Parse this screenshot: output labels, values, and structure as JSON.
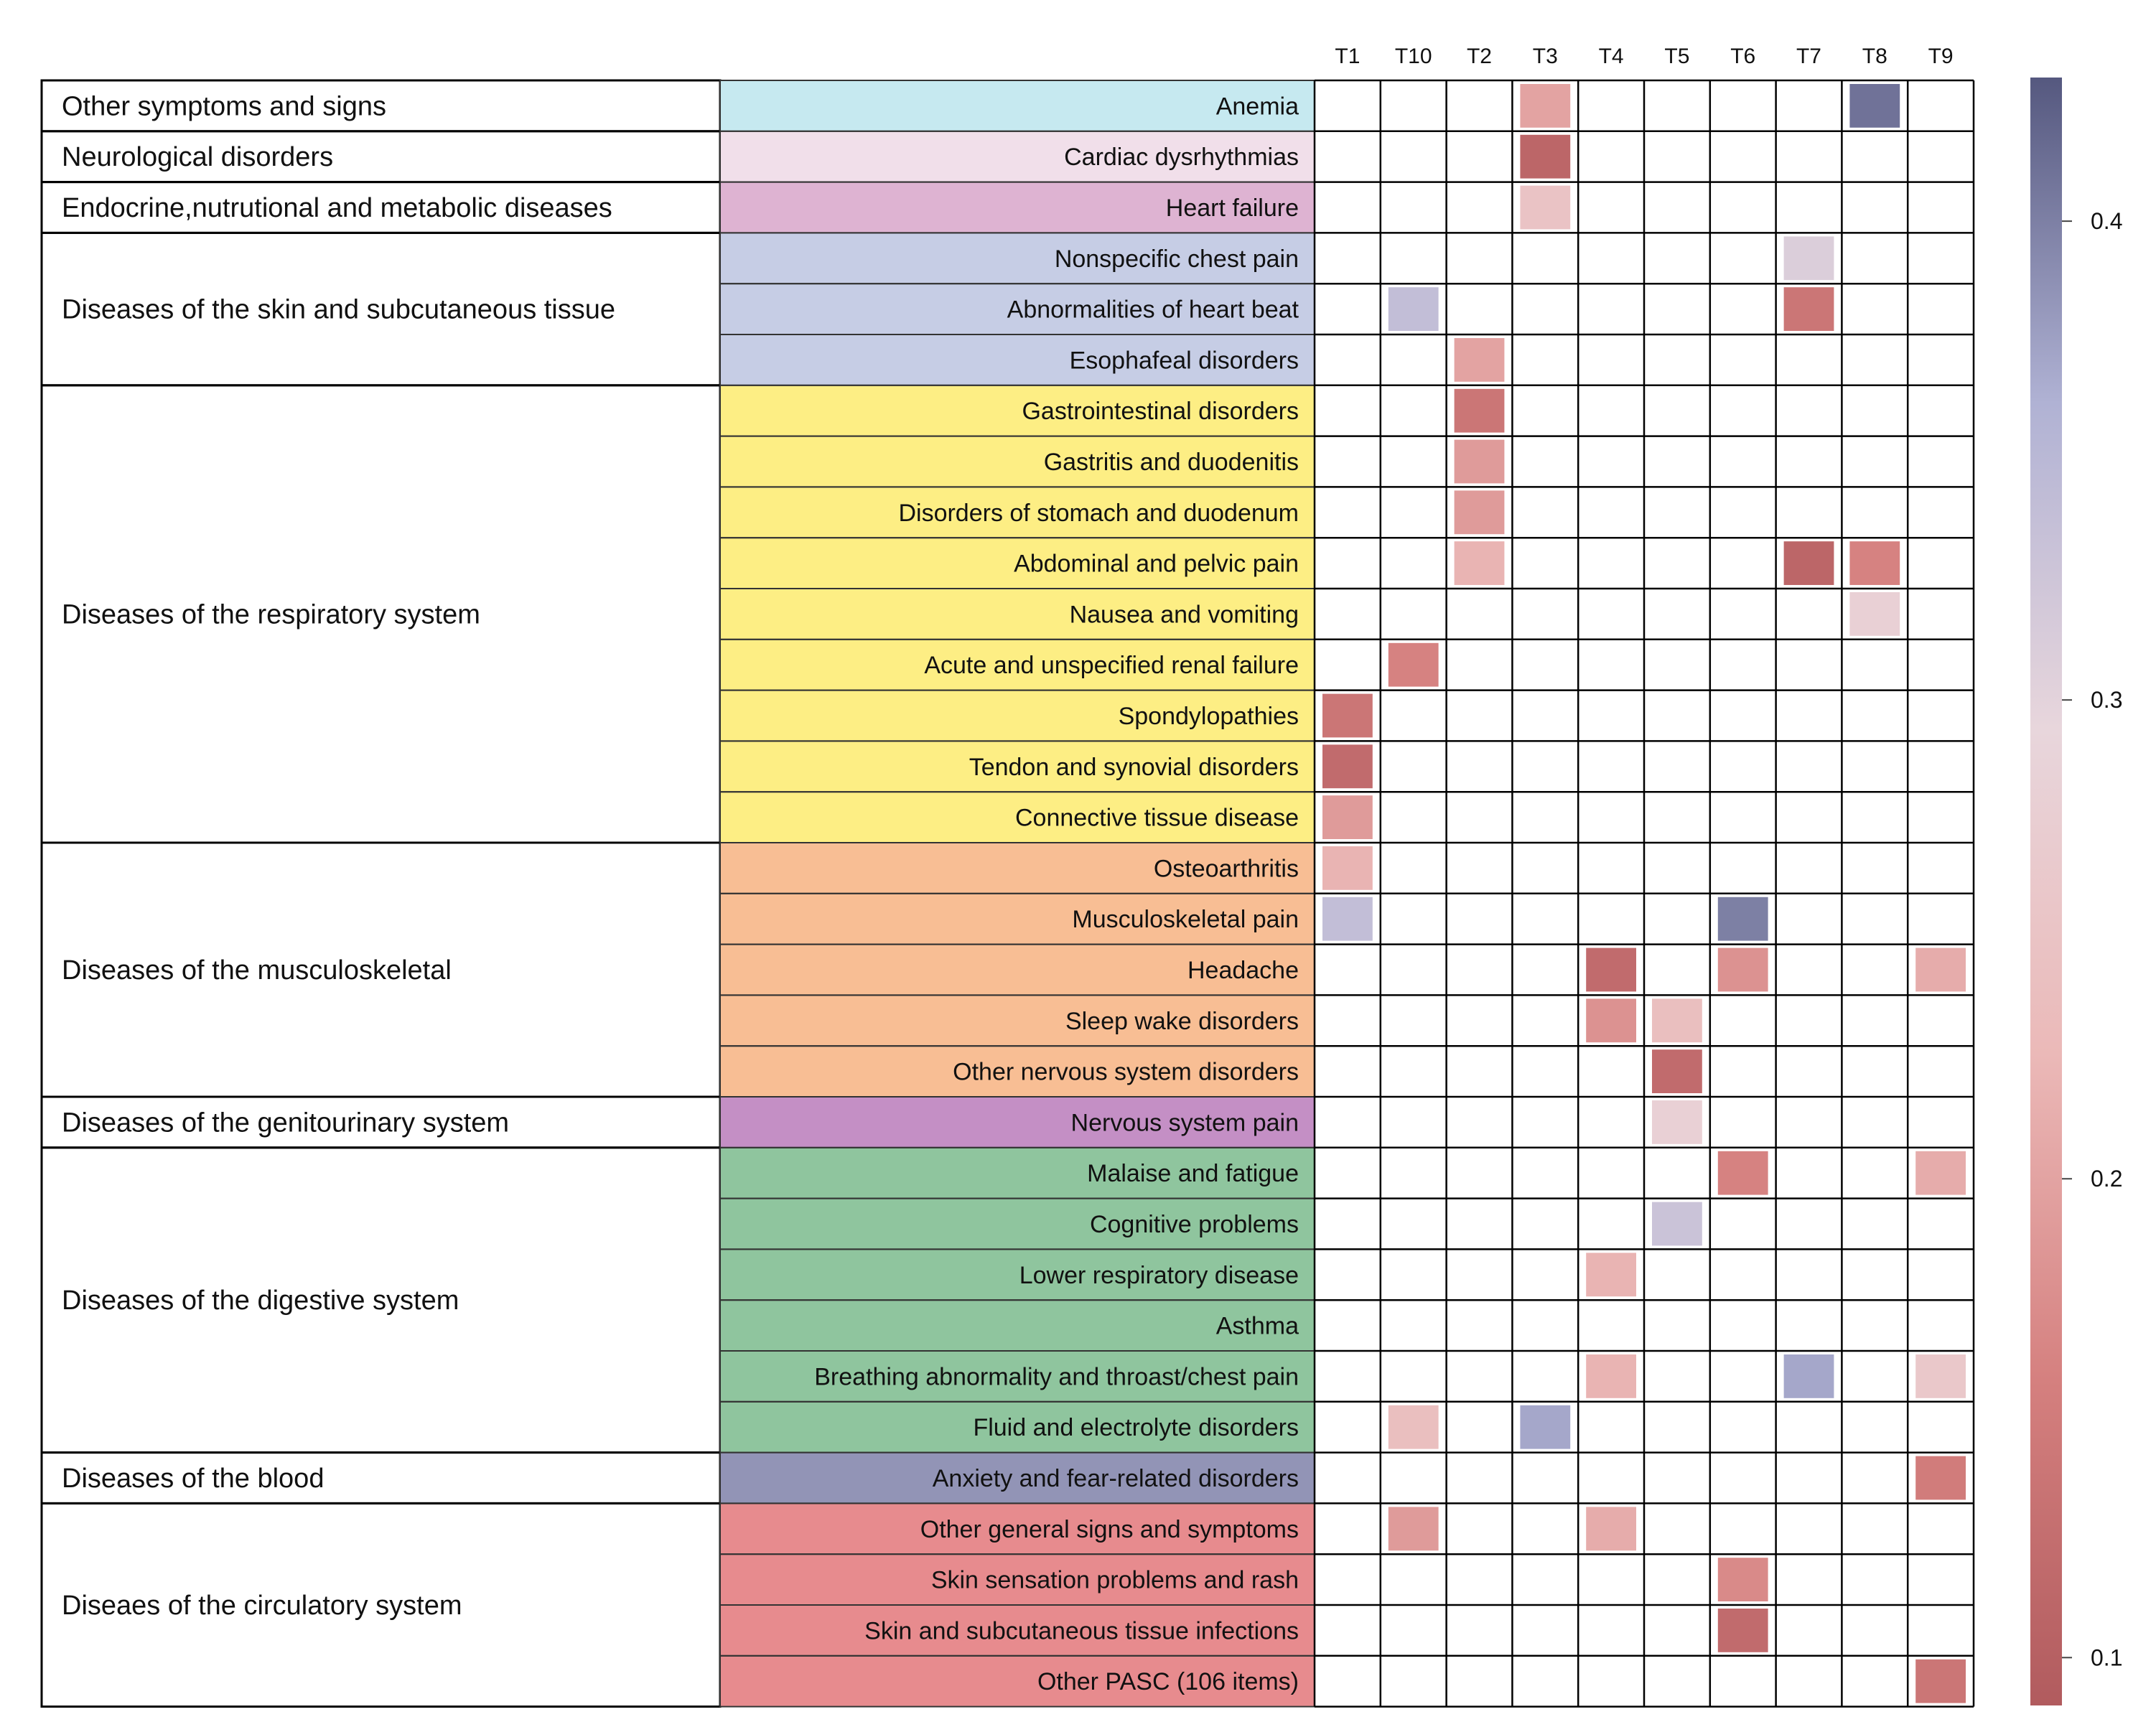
{
  "chart_data": {
    "type": "heatmap",
    "x_categories": [
      "T1",
      "T10",
      "T2",
      "T3",
      "T4",
      "T5",
      "T6",
      "T7",
      "T8",
      "T9"
    ],
    "rows": [
      "Anemia",
      "Cardiac dysrhythmias",
      "Heart failure",
      "Nonspecific chest pain",
      "Abnormalities of heart beat",
      "Esophafeal disorders",
      "Gastrointestinal disorders",
      "Gastritis and duodenitis",
      "Disorders of stomach and duodenum",
      "Abdominal and pelvic pain",
      "Nausea and vomiting",
      "Acute and unspecified renal failure",
      "Spondylopathies",
      "Tendon and synovial disorders",
      "Connective tissue disease",
      "Osteoarthritis",
      "Musculoskeletal pain",
      "Headache",
      "Sleep wake disorders",
      "Other nervous system disorders",
      "Nervous system pain",
      "Malaise and fatigue",
      "Cognitive problems",
      "Lower respiratory disease",
      "Asthma",
      "Breathing abnormality and throast/chest pain",
      "Fluid and electrolyte disorders",
      "Anxiety and fear-related disorders",
      "Other general signs and symptoms",
      "Skin sensation problems and rash",
      "Skin and subcutaneous tissue infections",
      "Other PASC (106 items)"
    ],
    "groups": [
      {
        "label": "Other symptoms and signs",
        "rows": 1,
        "color": "#c6e9f0"
      },
      {
        "label": "Neurological disorders",
        "rows": 1,
        "color": "#f1dfea"
      },
      {
        "label": "Endocrine,nutrutional and metabolic diseases",
        "rows": 1,
        "color": "#deb3d2"
      },
      {
        "label": "Diseases of the skin and subcutaneous tissue",
        "rows": 3,
        "color": "#c6cde5"
      },
      {
        "label": "Diseases of the respiratory system",
        "rows": 9,
        "color": "#fdee84"
      },
      {
        "label": "Diseases of the musculoskeletal",
        "rows": 5,
        "color": "#f8be94"
      },
      {
        "label": "Diseases of the genitourinary system",
        "rows": 1,
        "color": "#c48fc5"
      },
      {
        "label": "Diseases of the digestive system",
        "rows": 6,
        "color": "#8fc59e"
      },
      {
        "label": "Diseases of the blood",
        "rows": 1,
        "color": "#9294b6"
      },
      {
        "label": "Diseaes of the circulatory system",
        "rows": 4,
        "color": "#e78b8e"
      }
    ],
    "cells": [
      {
        "row": 0,
        "col": "T3",
        "value": 0.2
      },
      {
        "row": 0,
        "col": "T8",
        "value": 0.41
      },
      {
        "row": 1,
        "col": "T3",
        "value": 0.11
      },
      {
        "row": 2,
        "col": "T3",
        "value": 0.25
      },
      {
        "row": 3,
        "col": "T7",
        "value": 0.31
      },
      {
        "row": 4,
        "col": "T10",
        "value": 0.34
      },
      {
        "row": 4,
        "col": "T7",
        "value": 0.14
      },
      {
        "row": 5,
        "col": "T2",
        "value": 0.2
      },
      {
        "row": 6,
        "col": "T2",
        "value": 0.14
      },
      {
        "row": 7,
        "col": "T2",
        "value": 0.19
      },
      {
        "row": 8,
        "col": "T2",
        "value": 0.19
      },
      {
        "row": 9,
        "col": "T2",
        "value": 0.22
      },
      {
        "row": 9,
        "col": "T7",
        "value": 0.11
      },
      {
        "row": 9,
        "col": "T8",
        "value": 0.16
      },
      {
        "row": 10,
        "col": "T8",
        "value": 0.28
      },
      {
        "row": 11,
        "col": "T10",
        "value": 0.16
      },
      {
        "row": 12,
        "col": "T1",
        "value": 0.14
      },
      {
        "row": 13,
        "col": "T1",
        "value": 0.12
      },
      {
        "row": 14,
        "col": "T1",
        "value": 0.19
      },
      {
        "row": 15,
        "col": "T1",
        "value": 0.22
      },
      {
        "row": 16,
        "col": "T1",
        "value": 0.34
      },
      {
        "row": 16,
        "col": "T6",
        "value": 0.4
      },
      {
        "row": 17,
        "col": "T4",
        "value": 0.12
      },
      {
        "row": 17,
        "col": "T6",
        "value": 0.18
      },
      {
        "row": 17,
        "col": "T9",
        "value": 0.21
      },
      {
        "row": 18,
        "col": "T4",
        "value": 0.18
      },
      {
        "row": 18,
        "col": "T5",
        "value": 0.24
      },
      {
        "row": 19,
        "col": "T5",
        "value": 0.12
      },
      {
        "row": 20,
        "col": "T5",
        "value": 0.28
      },
      {
        "row": 21,
        "col": "T6",
        "value": 0.16
      },
      {
        "row": 21,
        "col": "T9",
        "value": 0.21
      },
      {
        "row": 22,
        "col": "T5",
        "value": 0.33
      },
      {
        "row": 23,
        "col": "T4",
        "value": 0.22
      },
      {
        "row": 25,
        "col": "T4",
        "value": 0.22
      },
      {
        "row": 25,
        "col": "T7",
        "value": 0.37
      },
      {
        "row": 25,
        "col": "T9",
        "value": 0.26
      },
      {
        "row": 26,
        "col": "T10",
        "value": 0.24
      },
      {
        "row": 26,
        "col": "T3",
        "value": 0.37
      },
      {
        "row": 27,
        "col": "T9",
        "value": 0.15
      },
      {
        "row": 28,
        "col": "T10",
        "value": 0.19
      },
      {
        "row": 28,
        "col": "T4",
        "value": 0.21
      },
      {
        "row": 29,
        "col": "T6",
        "value": 0.17
      },
      {
        "row": 30,
        "col": "T6",
        "value": 0.12
      },
      {
        "row": 31,
        "col": "T9",
        "value": 0.14
      }
    ],
    "colorbar": {
      "range": [
        0.09,
        0.43
      ],
      "ticks": [
        0.1,
        0.2,
        0.3,
        0.4
      ],
      "tick_labels": [
        "0.1",
        "0.2",
        "0.3",
        "0.4"
      ],
      "stops": [
        "#b15b5e",
        "#d5807f",
        "#ebb9b8",
        "#e8d6dc",
        "#b0b2d4",
        "#55587f"
      ]
    },
    "grid": true,
    "legend": "right"
  }
}
